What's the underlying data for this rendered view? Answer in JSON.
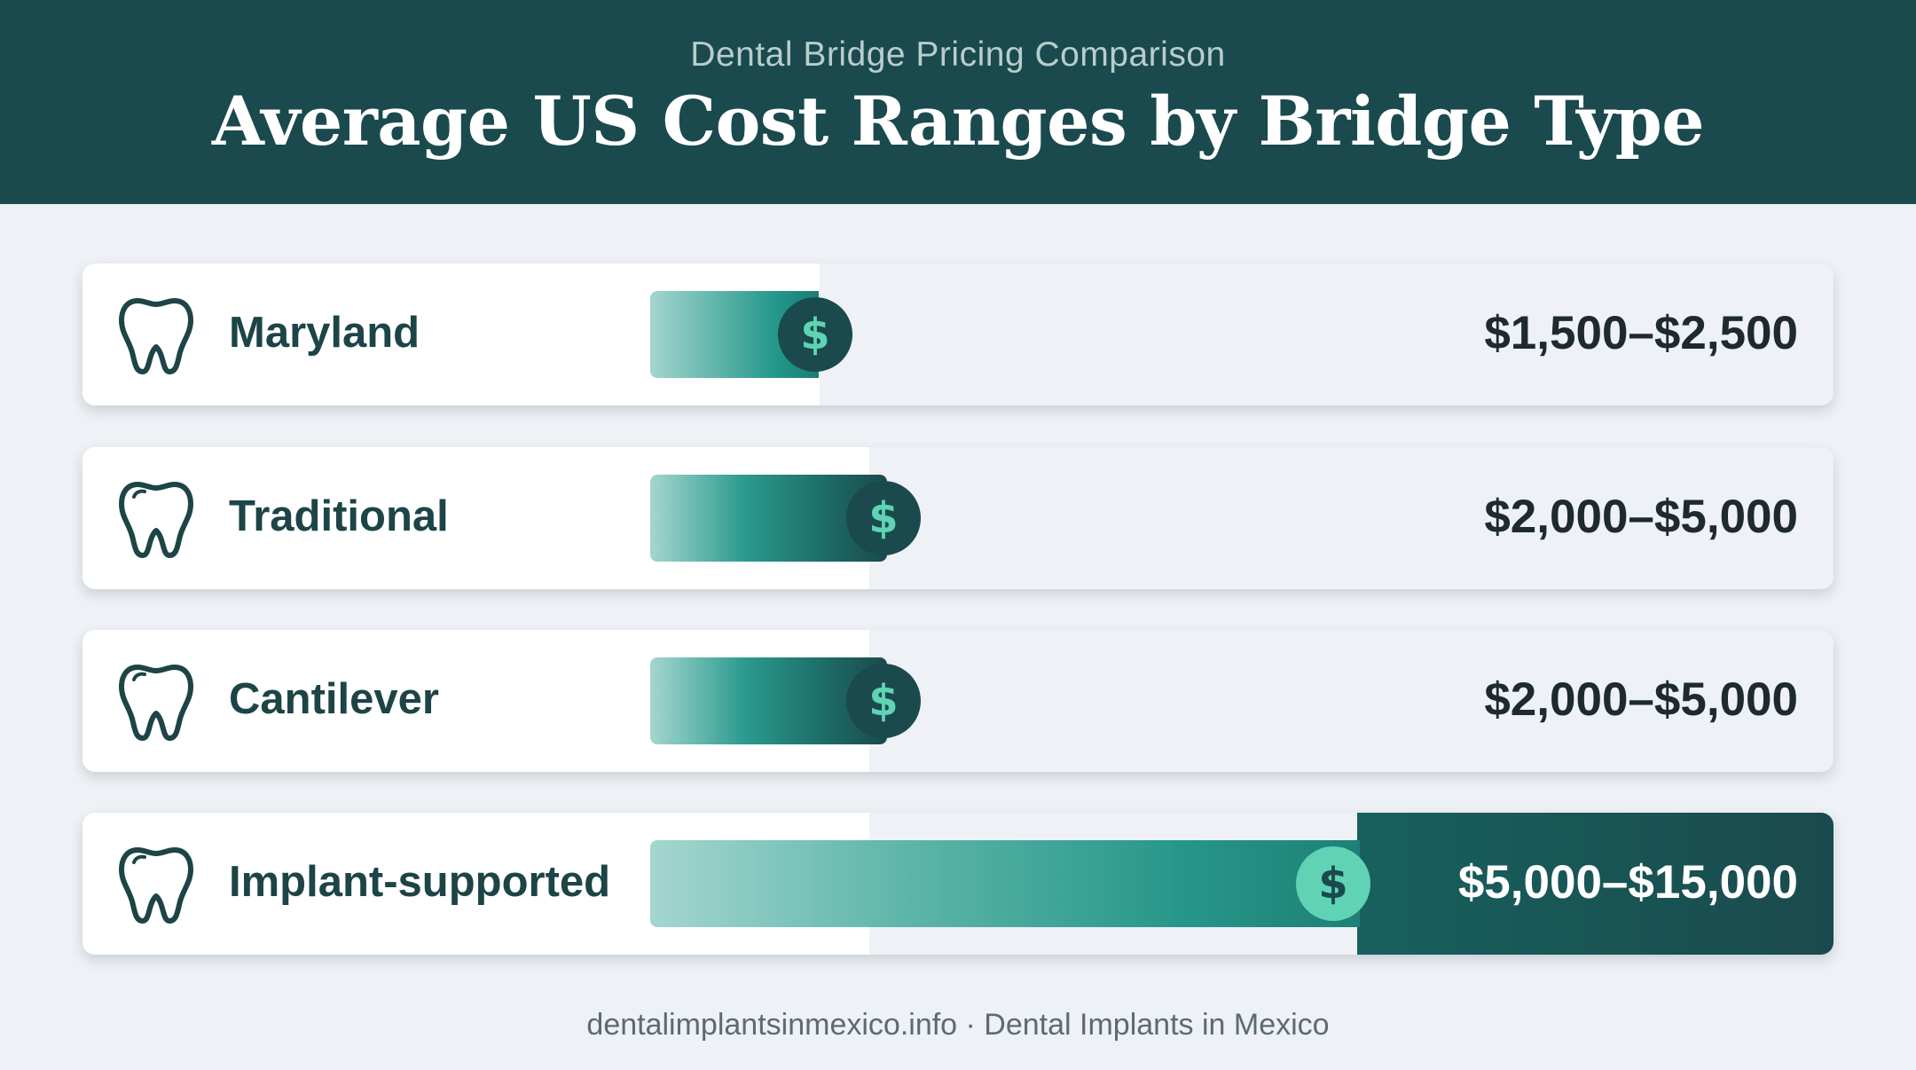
{
  "header": {
    "subtitle": "Dental Bridge Pricing Comparison",
    "title": "Average US Cost Ranges by Bridge Type"
  },
  "chart_data": {
    "type": "bar",
    "title": "Average US Cost Ranges by Bridge Type",
    "subtitle": "Dental Bridge Pricing Comparison",
    "unit": "USD",
    "categories": [
      "Maryland",
      "Traditional",
      "Cantilever",
      "Implant-supported"
    ],
    "ranges": [
      {
        "low": 1500,
        "high": 2500
      },
      {
        "low": 2000,
        "high": 5000
      },
      {
        "low": 2000,
        "high": 5000
      },
      {
        "low": 5000,
        "high": 15000
      }
    ],
    "price_labels": [
      "$1,500–$2,500",
      "$2,000–$5,000",
      "$2,000–$5,000",
      "$5,000–$15,000"
    ],
    "highlighted": "Implant-supported"
  },
  "rows": [
    {
      "label": "Maryland",
      "price": "$1,500–$2,500",
      "icon": "tooth-icon",
      "coin": "$"
    },
    {
      "label": "Traditional",
      "price": "$2,000–$5,000",
      "icon": "tooth-icon",
      "coin": "$"
    },
    {
      "label": "Cantilever",
      "price": "$2,000–$5,000",
      "icon": "tooth-icon",
      "coin": "$"
    },
    {
      "label": "Implant-supported",
      "price": "$5,000–$15,000",
      "icon": "tooth-icon",
      "coin": "$"
    }
  ],
  "colors": {
    "header_bg": "#1a4a4d",
    "accent_teal": "#22978a",
    "coin_mint": "#5fd3b4",
    "page_bg": "#eef1f5"
  },
  "footer": {
    "text": "dentalimplantsinmexico.info · Dental Implants in Mexico"
  }
}
